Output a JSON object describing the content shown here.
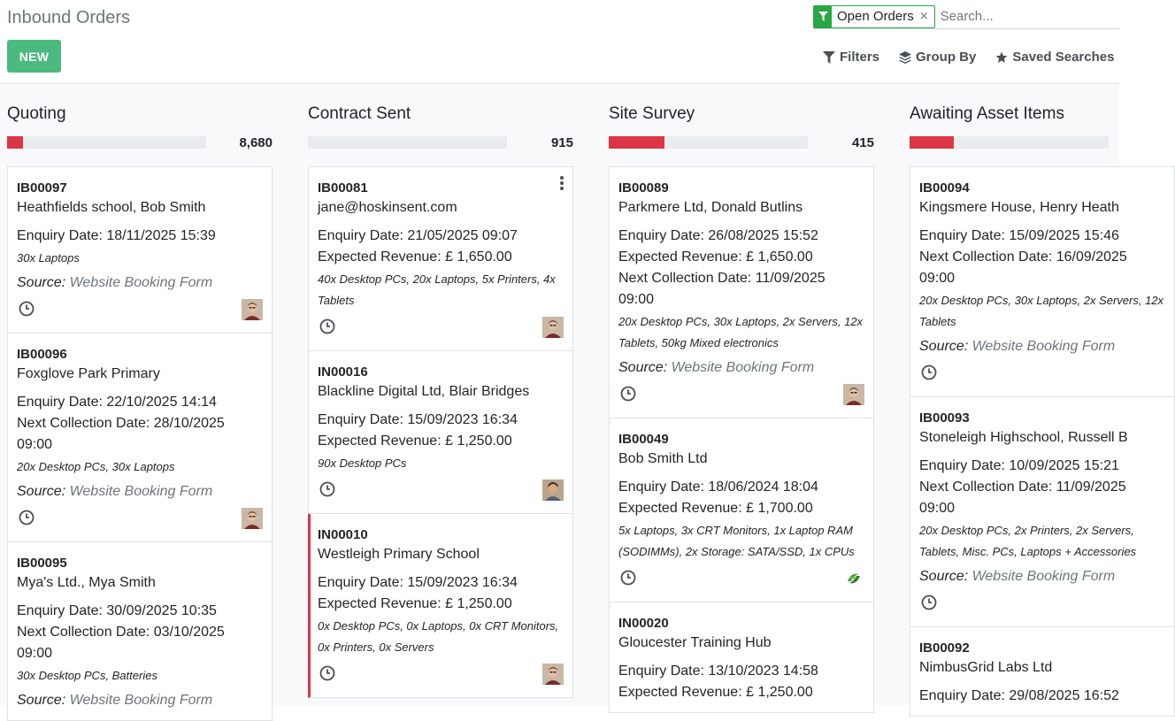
{
  "header": {
    "title": "Inbound Orders",
    "new_label": "NEW",
    "facet_label": "Open Orders",
    "facet_remove": "×",
    "search_placeholder": "Search...",
    "filters_label": "Filters",
    "groupby_label": "Group By",
    "saved_label": "Saved Searches"
  },
  "columns": [
    {
      "title": "Quoting",
      "count": "8,680",
      "progress_fraction": 0.08,
      "cards": [
        {
          "ref": "IB00097",
          "name": "Heathfields school, Bob Smith",
          "enquiry": "Enquiry Date: 18/11/2025 15:39",
          "items": "30x Laptops",
          "source_label": "Source:",
          "source_value": "Website Booking Form"
        },
        {
          "ref": "IB00096",
          "name": "Foxglove Park Primary",
          "enquiry": "Enquiry Date: 22/10/2025 14:14",
          "collection": "Next Collection Date: 28/10/2025 09:00",
          "items": "20x Desktop PCs, 30x Laptops",
          "source_label": "Source:",
          "source_value": "Website Booking Form"
        },
        {
          "ref": "IB00095",
          "name": "Mya's Ltd., Mya Smith",
          "enquiry": "Enquiry Date: 30/09/2025 10:35",
          "collection": "Next Collection Date: 03/10/2025 09:00",
          "items": "30x Desktop PCs, Batteries",
          "source_label": "Source:",
          "source_value": "Website Booking Form"
        }
      ]
    },
    {
      "title": "Contract Sent",
      "count": "915",
      "progress_fraction": 0,
      "cards": [
        {
          "ref": "IB00081",
          "name": "jane@hoskinsent.com",
          "enquiry": "Enquiry Date: 21/05/2025 09:07",
          "revenue": "Expected Revenue: £ 1,650.00",
          "items": "40x Desktop PCs, 20x Laptops, 5x Printers, 4x Tablets"
        },
        {
          "ref": "IN00016",
          "name": "Blackline Digital Ltd, Blair Bridges",
          "enquiry": "Enquiry Date: 15/09/2023 16:34",
          "revenue": "Expected Revenue: £ 1,250.00",
          "items": "90x Desktop PCs"
        },
        {
          "ref": "IN00010",
          "name": "Westleigh Primary School",
          "enquiry": "Enquiry Date: 15/09/2023 16:34",
          "revenue": "Expected Revenue: £ 1,250.00",
          "items": "0x Desktop PCs, 0x Laptops, 0x CRT Monitors, 0x Printers, 0x Servers"
        }
      ]
    },
    {
      "title": "Site Survey",
      "count": "415",
      "progress_fraction": 0.28,
      "cards": [
        {
          "ref": "IB00089",
          "name": "Parkmere Ltd, Donald Butlins",
          "enquiry": "Enquiry Date: 26/08/2025 15:52",
          "revenue": "Expected Revenue: £ 1,650.00",
          "collection": "Next Collection Date: 11/09/2025 09:00",
          "items": "20x Desktop PCs, 30x Laptops, 2x Servers, 12x Tablets, 50kg Mixed electronics",
          "source_label": "Source:",
          "source_value": "Website Booking Form"
        },
        {
          "ref": "IB00049",
          "name": "Bob Smith Ltd",
          "enquiry": "Enquiry Date: 18/06/2024 18:04",
          "revenue": "Expected Revenue: £ 1,700.00",
          "items": "5x Laptops, 3x CRT Monitors, 1x Laptop RAM (SODIMMs), 2x Storage: SATA/SSD, 1x CPUs"
        },
        {
          "ref": "IN00020",
          "name": "Gloucester Training Hub",
          "enquiry": "Enquiry Date: 13/10/2023 14:58",
          "revenue": "Expected Revenue: £ 1,250.00"
        }
      ]
    },
    {
      "title": "Awaiting Asset Items",
      "count": "",
      "progress_fraction": 0.22,
      "cards": [
        {
          "ref": "IB00094",
          "name": "Kingsmere House, Henry Heath",
          "enquiry": "Enquiry Date: 15/09/2025 15:46",
          "collection": "Next Collection Date: 16/09/2025 09:00",
          "items": "20x Desktop PCs, 30x Laptops, 2x Servers, 12x Tablets",
          "source_label": "Source:",
          "source_value": "Website Booking Form"
        },
        {
          "ref": "IB00093",
          "name": "Stoneleigh Highschool, Russell B",
          "enquiry": "Enquiry Date: 10/09/2025 15:21",
          "collection": "Next Collection Date: 11/09/2025 09:00",
          "items": "20x Desktop PCs, 2x Printers, 2x Servers, Tablets, Misc. PCs, Laptops + Accessories",
          "source_label": "Source:",
          "source_value": "Website Booking Form"
        },
        {
          "ref": "IB00092",
          "name": "NimbusGrid Labs Ltd",
          "enquiry": "Enquiry Date: 29/08/2025 16:52"
        }
      ]
    }
  ],
  "colors": {
    "accent": "#4cb97e",
    "danger": "#dc3545",
    "facet": "#28a745"
  }
}
